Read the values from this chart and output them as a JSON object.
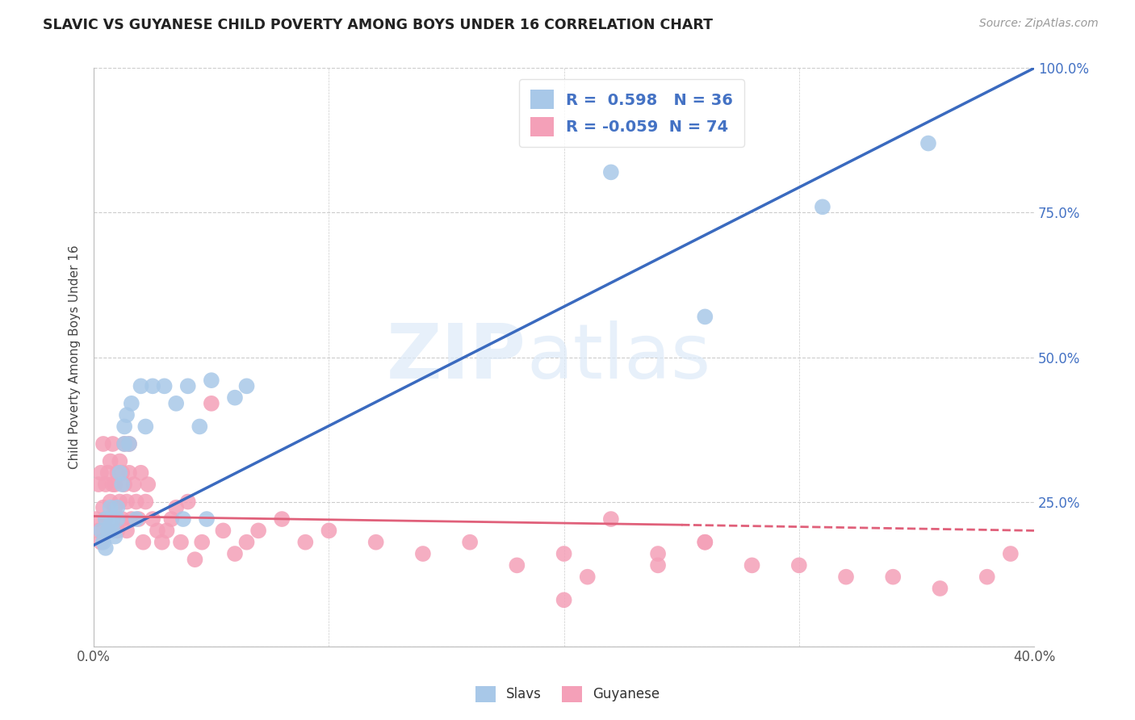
{
  "title": "SLAVIC VS GUYANESE CHILD POVERTY AMONG BOYS UNDER 16 CORRELATION CHART",
  "source": "Source: ZipAtlas.com",
  "ylabel": "Child Poverty Among Boys Under 16",
  "xlim": [
    0.0,
    0.4
  ],
  "ylim": [
    0.0,
    1.0
  ],
  "xticks": [
    0.0,
    0.1,
    0.2,
    0.3,
    0.4
  ],
  "xtick_labels": [
    "0.0%",
    "",
    "",
    "",
    "40.0%"
  ],
  "ytick_vals": [
    0.0,
    0.25,
    0.5,
    0.75,
    1.0
  ],
  "ytick_labels_right": [
    "",
    "25.0%",
    "50.0%",
    "75.0%",
    "100.0%"
  ],
  "slavs_R": 0.598,
  "slavs_N": 36,
  "guyanese_R": -0.059,
  "guyanese_N": 74,
  "slavs_color": "#a8c8e8",
  "guyanese_color": "#f4a0b8",
  "slavs_line_color": "#3a6abf",
  "guyanese_line_color": "#e0607a",
  "watermark_zip": "ZIP",
  "watermark_atlas": "atlas",
  "slavs_x": [
    0.003,
    0.004,
    0.005,
    0.005,
    0.006,
    0.007,
    0.007,
    0.008,
    0.008,
    0.009,
    0.01,
    0.01,
    0.011,
    0.012,
    0.013,
    0.013,
    0.014,
    0.015,
    0.016,
    0.018,
    0.02,
    0.022,
    0.025,
    0.03,
    0.035,
    0.038,
    0.04,
    0.045,
    0.048,
    0.05,
    0.06,
    0.065,
    0.22,
    0.26,
    0.31,
    0.355
  ],
  "slavs_y": [
    0.2,
    0.18,
    0.22,
    0.17,
    0.2,
    0.21,
    0.24,
    0.2,
    0.22,
    0.19,
    0.22,
    0.24,
    0.3,
    0.28,
    0.35,
    0.38,
    0.4,
    0.35,
    0.42,
    0.22,
    0.45,
    0.38,
    0.45,
    0.45,
    0.42,
    0.22,
    0.45,
    0.38,
    0.22,
    0.46,
    0.43,
    0.45,
    0.82,
    0.57,
    0.76,
    0.87
  ],
  "guyanese_x": [
    0.001,
    0.002,
    0.002,
    0.003,
    0.003,
    0.004,
    0.004,
    0.005,
    0.005,
    0.006,
    0.006,
    0.007,
    0.007,
    0.008,
    0.008,
    0.009,
    0.009,
    0.01,
    0.01,
    0.011,
    0.011,
    0.012,
    0.012,
    0.013,
    0.013,
    0.014,
    0.014,
    0.015,
    0.015,
    0.016,
    0.017,
    0.018,
    0.019,
    0.02,
    0.021,
    0.022,
    0.023,
    0.025,
    0.027,
    0.029,
    0.031,
    0.033,
    0.035,
    0.037,
    0.04,
    0.043,
    0.046,
    0.05,
    0.055,
    0.06,
    0.065,
    0.07,
    0.08,
    0.09,
    0.1,
    0.12,
    0.14,
    0.16,
    0.18,
    0.2,
    0.22,
    0.24,
    0.26,
    0.28,
    0.3,
    0.32,
    0.34,
    0.36,
    0.38,
    0.39,
    0.2,
    0.24,
    0.26,
    0.21
  ],
  "guyanese_y": [
    0.22,
    0.2,
    0.28,
    0.18,
    0.3,
    0.24,
    0.35,
    0.22,
    0.28,
    0.3,
    0.2,
    0.32,
    0.25,
    0.28,
    0.35,
    0.24,
    0.28,
    0.3,
    0.2,
    0.32,
    0.25,
    0.3,
    0.22,
    0.28,
    0.35,
    0.2,
    0.25,
    0.3,
    0.35,
    0.22,
    0.28,
    0.25,
    0.22,
    0.3,
    0.18,
    0.25,
    0.28,
    0.22,
    0.2,
    0.18,
    0.2,
    0.22,
    0.24,
    0.18,
    0.25,
    0.15,
    0.18,
    0.42,
    0.2,
    0.16,
    0.18,
    0.2,
    0.22,
    0.18,
    0.2,
    0.18,
    0.16,
    0.18,
    0.14,
    0.08,
    0.22,
    0.16,
    0.18,
    0.14,
    0.14,
    0.12,
    0.12,
    0.1,
    0.12,
    0.16,
    0.16,
    0.14,
    0.18,
    0.12
  ]
}
